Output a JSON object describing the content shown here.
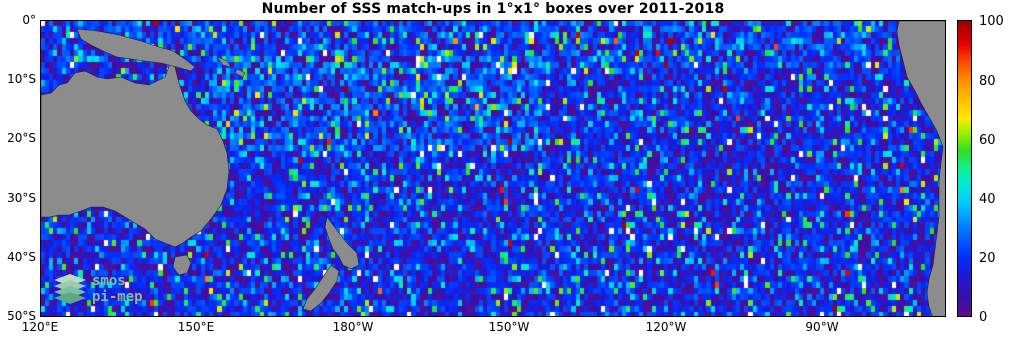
{
  "title": "Number of SSS match-ups in 1°x1° boxes over 2011-2018",
  "map": {
    "projection": "equirectangular",
    "lon_range": [
      "120°E",
      "95°W"
    ],
    "lat_range": [
      "0°",
      "50°S"
    ],
    "land_color": "#8c8c8c",
    "land_areas": [
      "Australia",
      "New Guinea",
      "New Zealand",
      "South America",
      "Pacific islands"
    ]
  },
  "axes": {
    "lat_ticks": [
      {
        "id": "0",
        "label": "0°"
      },
      {
        "id": "10",
        "label": "10°S"
      },
      {
        "id": "20",
        "label": "20°S"
      },
      {
        "id": "30",
        "label": "30°S"
      },
      {
        "id": "40",
        "label": "40°S"
      },
      {
        "id": "50",
        "label": "50°S"
      }
    ],
    "lon_ticks": [
      {
        "id": "120E",
        "label": "120°E"
      },
      {
        "id": "150E",
        "label": "150°E"
      },
      {
        "id": "180W",
        "label": "180°W"
      },
      {
        "id": "150W",
        "label": "150°W"
      },
      {
        "id": "120W",
        "label": "120°W"
      },
      {
        "id": "90W",
        "label": "90°W"
      }
    ]
  },
  "colorbar": {
    "min": 0,
    "max": 100,
    "labels": [
      "0",
      "20",
      "40",
      "60",
      "80",
      "100"
    ],
    "colormap": "jet-like with purple low end",
    "colors": {
      "low": "#5a0f8c",
      "blue": "#0030ff",
      "cyan": "#00c8ff",
      "green": "#2ee020",
      "yellow": "#ffe800",
      "orange": "#ff8c00",
      "red": "#e80000",
      "high": "#9c0000"
    }
  },
  "logo": {
    "line1": "smos",
    "line2": "pi-mep",
    "color": "#7bbf9f"
  }
}
